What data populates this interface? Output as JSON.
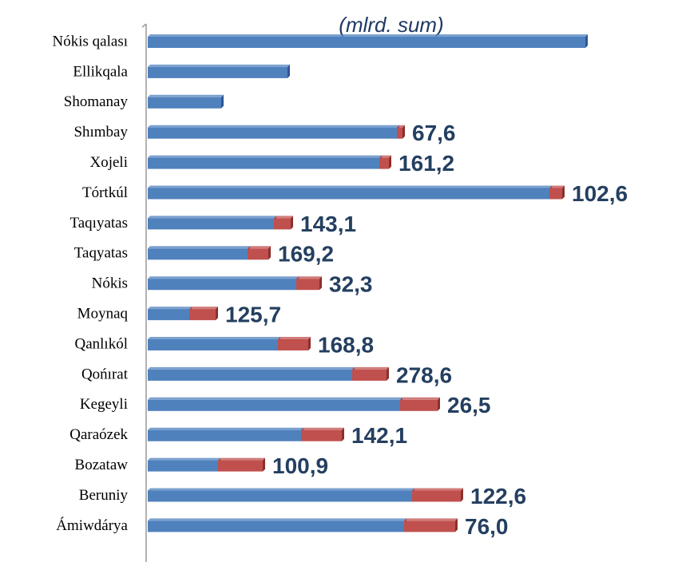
{
  "chart_data": {
    "type": "stacked_barh",
    "subtitle": "(mlrd. sum)",
    "categories": [
      "Nókis qalası",
      "Ellikqala",
      "Shomanay",
      "Shımbay",
      "Xojeli",
      "Tórtkúl",
      "Taqıyatas",
      "Taqyatas",
      "Nókis",
      "Moynaq",
      "Qanlıkól",
      "Qońırat",
      "Kegeyli",
      "Qaraózek",
      "Bozataw",
      "Beruniy",
      "Ámiwdárya"
    ],
    "series": [
      {
        "color": "#4f81bd",
        "values": [
          548,
          175,
          92,
          312,
          290,
          503,
          158,
          125,
          186,
          52,
          163,
          256,
          316,
          192,
          88,
          331,
          321
        ]
      },
      {
        "color": "#c0504d",
        "values": [
          0,
          0,
          0,
          7,
          12,
          16,
          21,
          26,
          29,
          33,
          38,
          43,
          47,
          51,
          56,
          61,
          64
        ]
      }
    ],
    "labels": [
      null,
      null,
      null,
      "67,6",
      "161,2",
      "102,6",
      "143,1",
      "169,2",
      "32,3",
      "125,7",
      "168,8",
      "278,6",
      "26,5",
      "142,1",
      "100,9",
      "122,6",
      "76,0"
    ],
    "xlim": [
      0,
      560
    ]
  }
}
